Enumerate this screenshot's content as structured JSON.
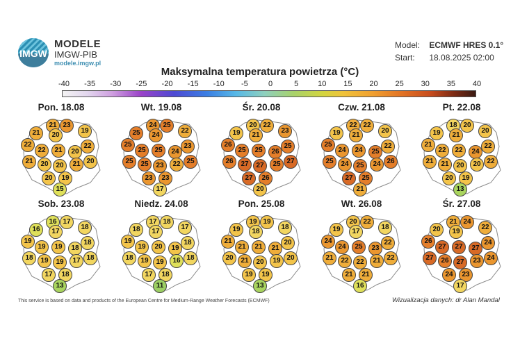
{
  "logo": {
    "badge_text": "IMGW",
    "title": "MODELE",
    "subtitle": "IMGW-PIB",
    "url": "modele.imgw.pl",
    "brand_color": "#3f8fb2"
  },
  "model": {
    "label": "Model:",
    "value": "ECMWF HRES 0.1°"
  },
  "start": {
    "label": "Start:",
    "value": "18.08.2025 02:00"
  },
  "title": "Maksymalna temperatura powietrza (°C)",
  "scale_labels": [
    "-40",
    "-35",
    "-30",
    "-25",
    "-20",
    "-15",
    "-10",
    "-5",
    "0",
    "5",
    "10",
    "15",
    "20",
    "25",
    "30",
    "35",
    "40"
  ],
  "panels": [
    {
      "day": "Pon. 18.08",
      "values": [
        21,
        23,
        21,
        20,
        19,
        22,
        22,
        21,
        20,
        22,
        21,
        20,
        20,
        21,
        20,
        20,
        19,
        15
      ]
    },
    {
      "day": "Wt. 19.08",
      "values": [
        24,
        25,
        25,
        24,
        22,
        25,
        25,
        25,
        24,
        23,
        25,
        25,
        23,
        22,
        25,
        23,
        23,
        17
      ]
    },
    {
      "day": "Śr. 20.08",
      "values": [
        20,
        22,
        19,
        21,
        23,
        26,
        25,
        25,
        26,
        25,
        26,
        27,
        27,
        25,
        27,
        27,
        26,
        20
      ]
    },
    {
      "day": "Czw. 21.08",
      "values": [
        22,
        22,
        19,
        21,
        20,
        25,
        24,
        24,
        25,
        22,
        25,
        24,
        25,
        24,
        26,
        27,
        25,
        21
      ]
    },
    {
      "day": "Pt. 22.08",
      "values": [
        18,
        20,
        19,
        21,
        20,
        21,
        22,
        22,
        24,
        22,
        21,
        21,
        20,
        20,
        22,
        20,
        19,
        13
      ]
    },
    {
      "day": "Sob. 23.08",
      "values": [
        16,
        17,
        16,
        17,
        18,
        19,
        19,
        19,
        18,
        18,
        18,
        19,
        19,
        17,
        18,
        17,
        18,
        13
      ]
    },
    {
      "day": "Niedz. 24.08",
      "values": [
        17,
        18,
        18,
        17,
        17,
        19,
        19,
        20,
        19,
        18,
        18,
        19,
        19,
        16,
        18,
        17,
        18,
        11
      ]
    },
    {
      "day": "Pon. 25.08",
      "values": [
        19,
        19,
        19,
        18,
        18,
        21,
        21,
        21,
        21,
        20,
        20,
        21,
        20,
        19,
        20,
        19,
        19,
        13
      ]
    },
    {
      "day": "Wt. 26.08",
      "values": [
        20,
        22,
        19,
        17,
        18,
        24,
        24,
        25,
        23,
        22,
        21,
        22,
        22,
        21,
        22,
        21,
        21,
        16
      ]
    },
    {
      "day": "Śr. 27.08",
      "values": [
        21,
        24,
        20,
        19,
        22,
        26,
        27,
        27,
        27,
        24,
        27,
        26,
        27,
        23,
        24,
        24,
        23,
        17
      ]
    }
  ],
  "footer_left": "This service is based on data and products of the European Centre for Medium-Range Weather Forecasts (ECMWF)",
  "footer_right": "Wizualizacja danych: dr Alan Mandal"
}
